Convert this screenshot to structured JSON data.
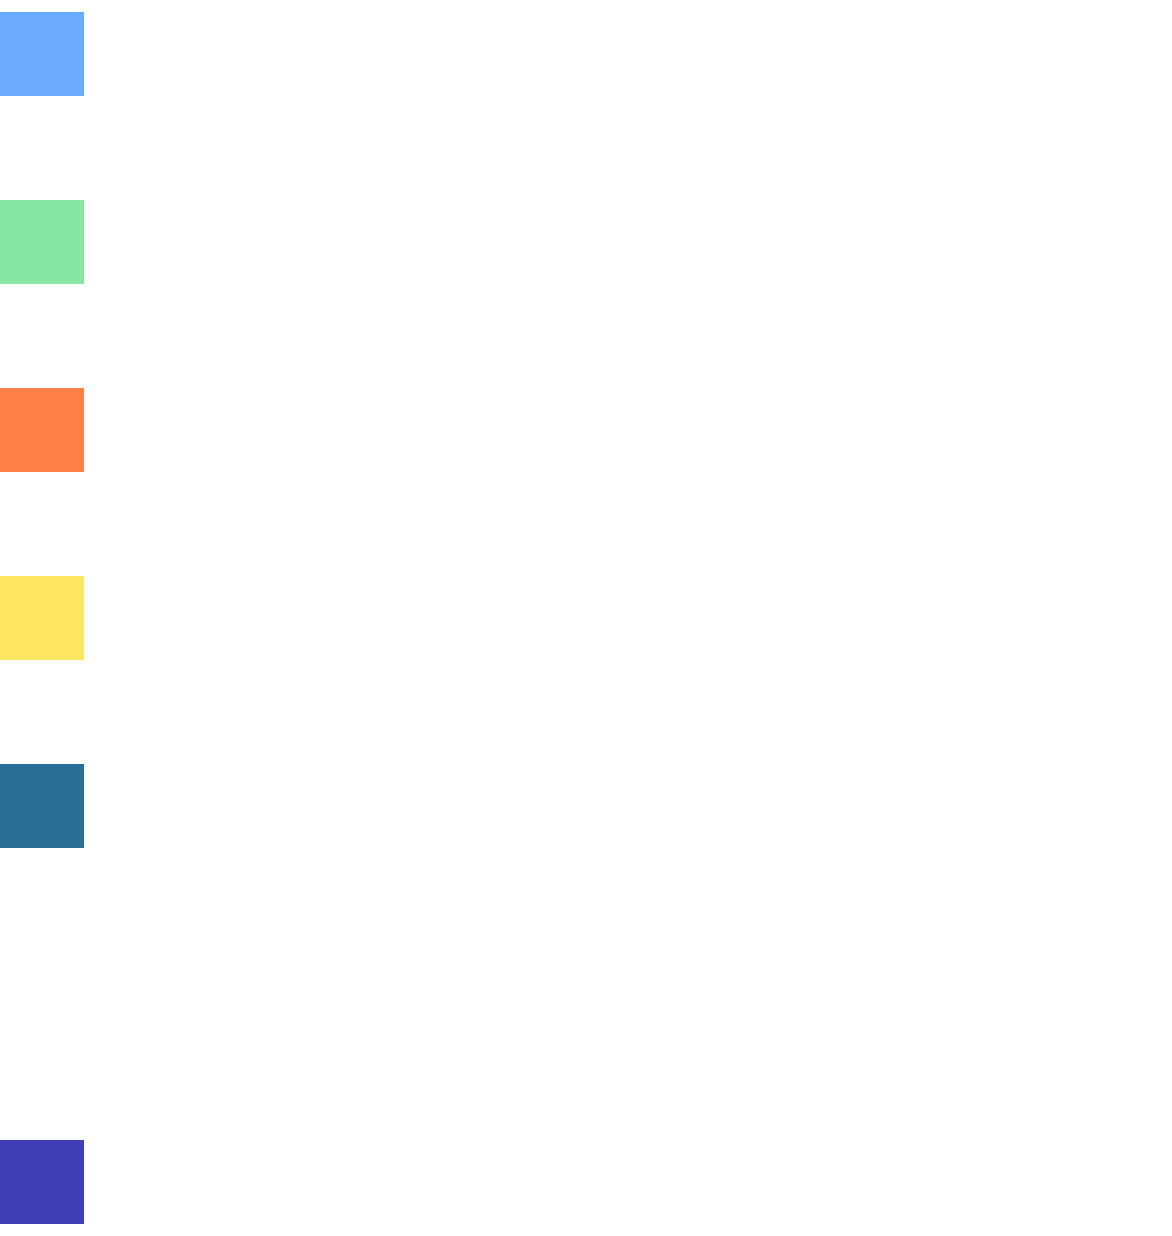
{
  "swatches": [
    {
      "id": "sw-blue",
      "color": "#6aabff"
    },
    {
      "id": "sw-green",
      "color": "#86e6a4"
    },
    {
      "id": "sw-orange",
      "color": "#ff7f46"
    },
    {
      "id": "sw-yellow",
      "color": "#ffe562"
    },
    {
      "id": "sw-teal",
      "color": "#296f96"
    },
    {
      "id": "sw-indigo",
      "color": "#4040b6"
    }
  ]
}
